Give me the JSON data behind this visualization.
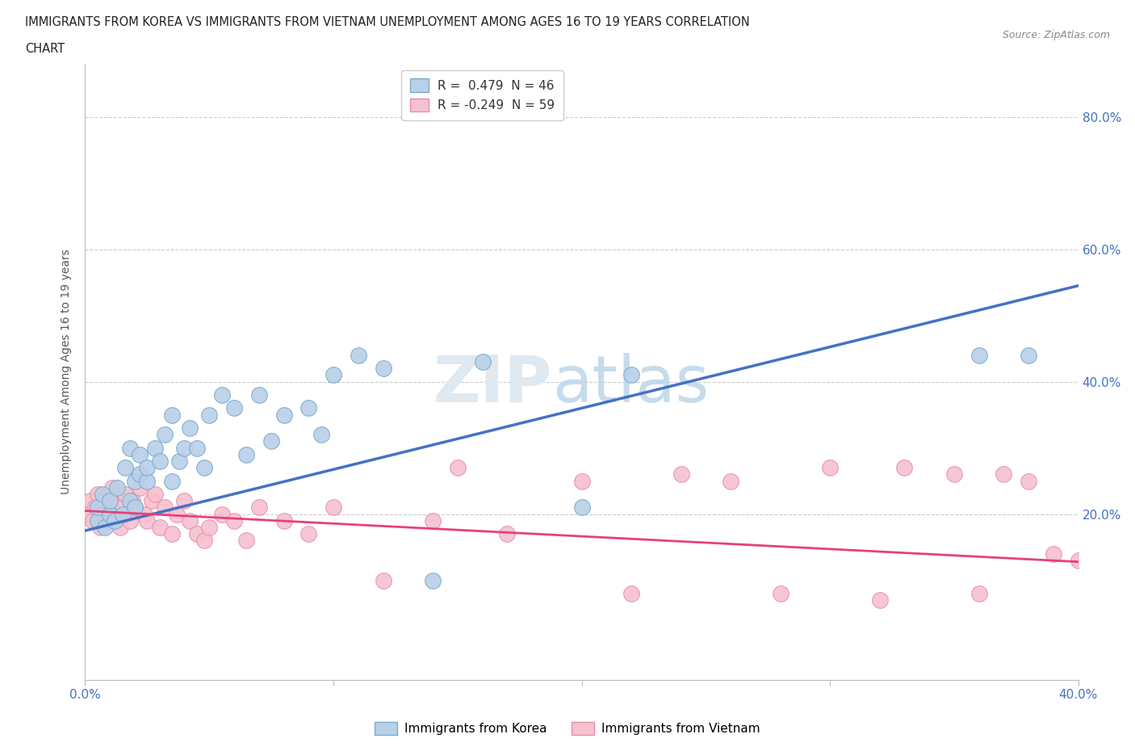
{
  "title_line1": "IMMIGRANTS FROM KOREA VS IMMIGRANTS FROM VIETNAM UNEMPLOYMENT AMONG AGES 16 TO 19 YEARS CORRELATION",
  "title_line2": "CHART",
  "source_text": "Source: ZipAtlas.com",
  "ylabel": "Unemployment Among Ages 16 to 19 years",
  "korea_color": "#b8d0e8",
  "korea_edge": "#7aaace",
  "vietnam_color": "#f5c0d0",
  "vietnam_edge": "#e890aa",
  "korea_line_color": "#4472c4",
  "vietnam_line_color": "#e8407a",
  "legend_korea_label": "R =  0.479  N = 46",
  "legend_vietnam_label": "R = -0.249  N = 59",
  "legend_korea_text": "Immigrants from Korea",
  "legend_vietnam_text": "Immigrants from Vietnam",
  "xlim": [
    0.0,
    0.4
  ],
  "ylim": [
    -0.05,
    0.88
  ],
  "korea_x": [
    0.005,
    0.005,
    0.007,
    0.008,
    0.01,
    0.01,
    0.012,
    0.013,
    0.015,
    0.016,
    0.018,
    0.018,
    0.02,
    0.02,
    0.022,
    0.022,
    0.025,
    0.025,
    0.028,
    0.03,
    0.032,
    0.035,
    0.035,
    0.038,
    0.04,
    0.042,
    0.045,
    0.048,
    0.05,
    0.055,
    0.06,
    0.065,
    0.07,
    0.075,
    0.08,
    0.09,
    0.095,
    0.1,
    0.11,
    0.12,
    0.14,
    0.16,
    0.2,
    0.22,
    0.36,
    0.38
  ],
  "korea_y": [
    0.19,
    0.21,
    0.23,
    0.18,
    0.2,
    0.22,
    0.19,
    0.24,
    0.2,
    0.27,
    0.22,
    0.3,
    0.25,
    0.21,
    0.26,
    0.29,
    0.25,
    0.27,
    0.3,
    0.28,
    0.32,
    0.25,
    0.35,
    0.28,
    0.3,
    0.33,
    0.3,
    0.27,
    0.35,
    0.38,
    0.36,
    0.29,
    0.38,
    0.31,
    0.35,
    0.36,
    0.32,
    0.41,
    0.44,
    0.42,
    0.1,
    0.43,
    0.21,
    0.41,
    0.44,
    0.44
  ],
  "vietnam_x": [
    0.001,
    0.002,
    0.003,
    0.004,
    0.005,
    0.006,
    0.007,
    0.008,
    0.009,
    0.01,
    0.011,
    0.012,
    0.013,
    0.014,
    0.015,
    0.016,
    0.017,
    0.018,
    0.019,
    0.02,
    0.022,
    0.024,
    0.025,
    0.027,
    0.028,
    0.03,
    0.032,
    0.035,
    0.037,
    0.04,
    0.042,
    0.045,
    0.048,
    0.05,
    0.055,
    0.06,
    0.065,
    0.07,
    0.08,
    0.09,
    0.1,
    0.12,
    0.14,
    0.15,
    0.17,
    0.2,
    0.22,
    0.24,
    0.26,
    0.28,
    0.3,
    0.32,
    0.33,
    0.35,
    0.36,
    0.37,
    0.38,
    0.39,
    0.4
  ],
  "vietnam_y": [
    0.2,
    0.22,
    0.19,
    0.21,
    0.23,
    0.18,
    0.2,
    0.22,
    0.19,
    0.21,
    0.24,
    0.2,
    0.22,
    0.18,
    0.21,
    0.23,
    0.2,
    0.19,
    0.22,
    0.21,
    0.24,
    0.2,
    0.19,
    0.22,
    0.23,
    0.18,
    0.21,
    0.17,
    0.2,
    0.22,
    0.19,
    0.17,
    0.16,
    0.18,
    0.2,
    0.19,
    0.16,
    0.21,
    0.19,
    0.17,
    0.21,
    0.1,
    0.19,
    0.27,
    0.17,
    0.25,
    0.08,
    0.26,
    0.25,
    0.08,
    0.27,
    0.07,
    0.27,
    0.26,
    0.08,
    0.26,
    0.25,
    0.14,
    0.13
  ],
  "korea_line_x0": 0.0,
  "korea_line_y0": 0.175,
  "korea_line_x1": 0.4,
  "korea_line_y1": 0.545,
  "vietnam_line_x0": 0.0,
  "vietnam_line_y0": 0.205,
  "vietnam_line_x1": 0.4,
  "vietnam_line_y1": 0.128
}
